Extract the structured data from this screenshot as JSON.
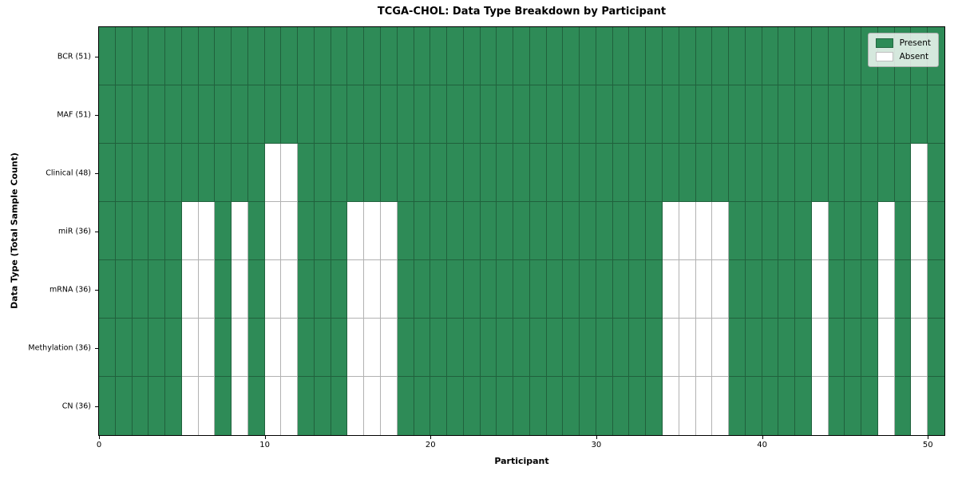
{
  "chart_data": {
    "type": "heatmap",
    "title": "TCGA-CHOL: Data Type Breakdown by Participant",
    "xlabel": "Participant",
    "ylabel": "Data Type (Total Sample Count)",
    "total_participants": 51,
    "x_ticks": [
      0,
      10,
      20,
      30,
      40,
      50
    ],
    "grid": true,
    "rows": [
      {
        "label": "BCR (51)",
        "present_count": 51,
        "absent_participants": []
      },
      {
        "label": "MAF (51)",
        "present_count": 51,
        "absent_participants": []
      },
      {
        "label": "Clinical (48)",
        "present_count": 48,
        "absent_participants": [
          10,
          11,
          49
        ]
      },
      {
        "label": "miR (36)",
        "present_count": 36,
        "absent_participants": [
          5,
          6,
          8,
          10,
          11,
          15,
          16,
          17,
          34,
          35,
          36,
          37,
          43,
          47,
          49
        ]
      },
      {
        "label": "mRNA (36)",
        "present_count": 36,
        "absent_participants": [
          5,
          6,
          8,
          10,
          11,
          15,
          16,
          17,
          34,
          35,
          36,
          37,
          43,
          47,
          49
        ]
      },
      {
        "label": "Methylation (36)",
        "present_count": 36,
        "absent_participants": [
          5,
          6,
          8,
          10,
          11,
          15,
          16,
          17,
          34,
          35,
          36,
          37,
          43,
          47,
          49
        ]
      },
      {
        "label": "CN (36)",
        "present_count": 36,
        "absent_participants": [
          5,
          6,
          8,
          10,
          11,
          15,
          16,
          17,
          34,
          35,
          36,
          37,
          43,
          47,
          49
        ]
      }
    ],
    "legend": {
      "position": "upper right",
      "entries": [
        {
          "label": "Present",
          "color": "#2e8b57"
        },
        {
          "label": "Absent",
          "color": "#ffffff"
        }
      ]
    },
    "colors": {
      "present": "#2e8b57",
      "absent": "#ffffff",
      "gridline": "rgba(0,0,0,0.30)",
      "border": "#000000"
    }
  }
}
